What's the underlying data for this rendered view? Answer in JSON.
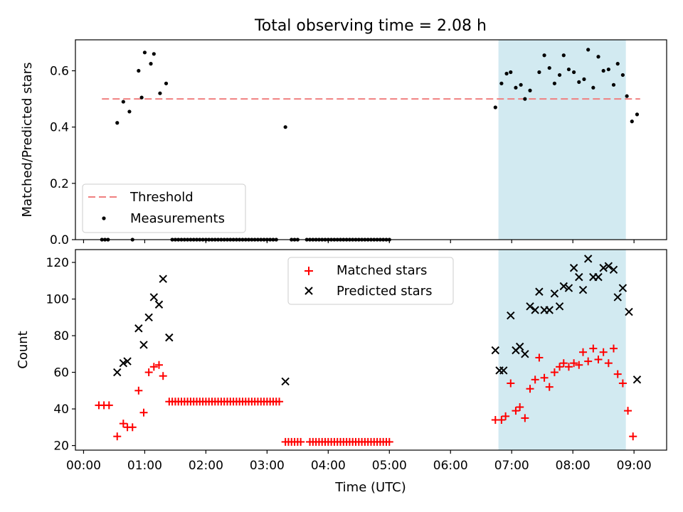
{
  "title": "Total observing time = 2.08 h",
  "xlabel": "Time (UTC)",
  "x_tick_labels": [
    "00:00",
    "01:00",
    "02:00",
    "03:00",
    "04:00",
    "05:00",
    "06:00",
    "07:00",
    "08:00",
    "09:00"
  ],
  "colors": {
    "threshold": "#f08080",
    "measurements": "#000000",
    "matched": "#ff0000",
    "predicted": "#000000",
    "span": "#add8e6"
  },
  "chart_data": [
    {
      "type": "scatter",
      "ylabel": "Matched/Predicted stars",
      "ylim": [
        0,
        0.71
      ],
      "y_ticks": [
        "0.0",
        "0.2",
        "0.4",
        "0.6"
      ],
      "xlim": [
        "23:52",
        "09:32"
      ],
      "legend_placement": "lower-left",
      "highlight_span": [
        "06:47",
        "08:52"
      ],
      "threshold": {
        "name": "Threshold",
        "value": 0.5,
        "x_range": [
          "00:18",
          "09:06"
        ]
      },
      "series": [
        {
          "name": "Measurements",
          "points": [
            [
              "00:18",
              0
            ],
            [
              "00:21",
              0
            ],
            [
              "00:24",
              0
            ],
            [
              "00:33",
              0.415
            ],
            [
              "00:39",
              0.49
            ],
            [
              "00:45",
              0.455
            ],
            [
              "00:48",
              0
            ],
            [
              "00:54",
              0.6
            ],
            [
              "00:57",
              0.505
            ],
            [
              "01:00",
              0.665
            ],
            [
              "01:06",
              0.625
            ],
            [
              "01:09",
              0.66
            ],
            [
              "01:15",
              0.52
            ],
            [
              "01:21",
              0.555
            ],
            [
              "01:27",
              0
            ],
            [
              "01:30",
              0
            ],
            [
              "01:33",
              0
            ],
            [
              "01:36",
              0
            ],
            [
              "01:39",
              0
            ],
            [
              "01:42",
              0
            ],
            [
              "01:45",
              0
            ],
            [
              "01:48",
              0
            ],
            [
              "01:51",
              0
            ],
            [
              "01:54",
              0
            ],
            [
              "01:57",
              0
            ],
            [
              "02:00",
              0
            ],
            [
              "02:03",
              0
            ],
            [
              "02:06",
              0
            ],
            [
              "02:09",
              0
            ],
            [
              "02:12",
              0
            ],
            [
              "02:15",
              0
            ],
            [
              "02:18",
              0
            ],
            [
              "02:21",
              0
            ],
            [
              "02:24",
              0
            ],
            [
              "02:27",
              0
            ],
            [
              "02:30",
              0
            ],
            [
              "02:33",
              0
            ],
            [
              "02:36",
              0
            ],
            [
              "02:39",
              0
            ],
            [
              "02:42",
              0
            ],
            [
              "02:45",
              0
            ],
            [
              "02:48",
              0
            ],
            [
              "02:51",
              0
            ],
            [
              "02:54",
              0
            ],
            [
              "02:57",
              0
            ],
            [
              "03:00",
              0
            ],
            [
              "03:03",
              0
            ],
            [
              "03:06",
              0
            ],
            [
              "03:09",
              0
            ],
            [
              "03:18",
              0.4
            ],
            [
              "03:24",
              0
            ],
            [
              "03:27",
              0
            ],
            [
              "03:30",
              0
            ],
            [
              "03:39",
              0
            ],
            [
              "03:42",
              0
            ],
            [
              "03:45",
              0
            ],
            [
              "03:48",
              0
            ],
            [
              "03:51",
              0
            ],
            [
              "03:54",
              0
            ],
            [
              "03:57",
              0
            ],
            [
              "04:00",
              0
            ],
            [
              "04:03",
              0
            ],
            [
              "04:06",
              0
            ],
            [
              "04:09",
              0
            ],
            [
              "04:12",
              0
            ],
            [
              "04:15",
              0
            ],
            [
              "04:18",
              0
            ],
            [
              "04:21",
              0
            ],
            [
              "04:24",
              0
            ],
            [
              "04:27",
              0
            ],
            [
              "04:30",
              0
            ],
            [
              "04:33",
              0
            ],
            [
              "04:36",
              0
            ],
            [
              "04:39",
              0
            ],
            [
              "04:42",
              0
            ],
            [
              "04:45",
              0
            ],
            [
              "04:48",
              0
            ],
            [
              "04:51",
              0
            ],
            [
              "04:54",
              0
            ],
            [
              "04:57",
              0
            ],
            [
              "05:00",
              0
            ],
            [
              "06:44",
              0.47
            ],
            [
              "06:50",
              0.555
            ],
            [
              "06:55",
              0.59
            ],
            [
              "06:59",
              0.595
            ],
            [
              "07:04",
              0.54
            ],
            [
              "07:09",
              0.55
            ],
            [
              "07:13",
              0.5
            ],
            [
              "07:18",
              0.53
            ],
            [
              "07:27",
              0.595
            ],
            [
              "07:32",
              0.655
            ],
            [
              "07:37",
              0.61
            ],
            [
              "07:42",
              0.555
            ],
            [
              "07:47",
              0.585
            ],
            [
              "07:51",
              0.655
            ],
            [
              "07:56",
              0.605
            ],
            [
              "08:01",
              0.595
            ],
            [
              "08:06",
              0.56
            ],
            [
              "08:11",
              0.57
            ],
            [
              "08:15",
              0.675
            ],
            [
              "08:20",
              0.54
            ],
            [
              "08:25",
              0.65
            ],
            [
              "08:30",
              0.6
            ],
            [
              "08:35",
              0.605
            ],
            [
              "08:40",
              0.55
            ],
            [
              "08:44",
              0.625
            ],
            [
              "08:49",
              0.585
            ],
            [
              "08:53",
              0.51
            ],
            [
              "08:58",
              0.42
            ],
            [
              "09:03",
              0.445
            ]
          ]
        }
      ]
    },
    {
      "type": "scatter",
      "ylabel": "Count",
      "ylim": [
        17.5,
        127
      ],
      "y_ticks": [
        "20",
        "40",
        "60",
        "80",
        "100",
        "120"
      ],
      "xlim": [
        "23:52",
        "09:32"
      ],
      "legend_placement": "upper-center",
      "highlight_span": [
        "06:47",
        "08:52"
      ],
      "series": [
        {
          "name": "Matched stars",
          "marker": "plus",
          "points": [
            [
              "00:15",
              42
            ],
            [
              "00:20",
              42
            ],
            [
              "00:25",
              42
            ],
            [
              "00:33",
              25
            ],
            [
              "00:39",
              32
            ],
            [
              "00:43",
              30
            ],
            [
              "00:48",
              30
            ],
            [
              "00:54",
              50
            ],
            [
              "00:59",
              38
            ],
            [
              "01:04",
              60
            ],
            [
              "01:09",
              63
            ],
            [
              "01:14",
              64
            ],
            [
              "01:18",
              58
            ],
            [
              "01:24",
              44
            ],
            [
              "01:27",
              44
            ],
            [
              "01:30",
              44
            ],
            [
              "01:33",
              44
            ],
            [
              "01:36",
              44
            ],
            [
              "01:39",
              44
            ],
            [
              "01:42",
              44
            ],
            [
              "01:45",
              44
            ],
            [
              "01:48",
              44
            ],
            [
              "01:51",
              44
            ],
            [
              "01:54",
              44
            ],
            [
              "01:57",
              44
            ],
            [
              "02:00",
              44
            ],
            [
              "02:03",
              44
            ],
            [
              "02:06",
              44
            ],
            [
              "02:09",
              44
            ],
            [
              "02:12",
              44
            ],
            [
              "02:15",
              44
            ],
            [
              "02:18",
              44
            ],
            [
              "02:21",
              44
            ],
            [
              "02:24",
              44
            ],
            [
              "02:27",
              44
            ],
            [
              "02:30",
              44
            ],
            [
              "02:33",
              44
            ],
            [
              "02:36",
              44
            ],
            [
              "02:39",
              44
            ],
            [
              "02:42",
              44
            ],
            [
              "02:45",
              44
            ],
            [
              "02:48",
              44
            ],
            [
              "02:51",
              44
            ],
            [
              "02:54",
              44
            ],
            [
              "02:57",
              44
            ],
            [
              "03:00",
              44
            ],
            [
              "03:03",
              44
            ],
            [
              "03:06",
              44
            ],
            [
              "03:09",
              44
            ],
            [
              "03:12",
              44
            ],
            [
              "03:18",
              22
            ],
            [
              "03:21",
              22
            ],
            [
              "03:24",
              22
            ],
            [
              "03:27",
              22
            ],
            [
              "03:30",
              22
            ],
            [
              "03:33",
              22
            ],
            [
              "03:42",
              22
            ],
            [
              "03:45",
              22
            ],
            [
              "03:48",
              22
            ],
            [
              "03:51",
              22
            ],
            [
              "03:54",
              22
            ],
            [
              "03:57",
              22
            ],
            [
              "04:00",
              22
            ],
            [
              "04:03",
              22
            ],
            [
              "04:06",
              22
            ],
            [
              "04:09",
              22
            ],
            [
              "04:12",
              22
            ],
            [
              "04:15",
              22
            ],
            [
              "04:18",
              22
            ],
            [
              "04:21",
              22
            ],
            [
              "04:24",
              22
            ],
            [
              "04:27",
              22
            ],
            [
              "04:30",
              22
            ],
            [
              "04:33",
              22
            ],
            [
              "04:36",
              22
            ],
            [
              "04:39",
              22
            ],
            [
              "04:42",
              22
            ],
            [
              "04:45",
              22
            ],
            [
              "04:48",
              22
            ],
            [
              "04:51",
              22
            ],
            [
              "04:54",
              22
            ],
            [
              "04:57",
              22
            ],
            [
              "05:00",
              22
            ],
            [
              "06:44",
              34
            ],
            [
              "06:50",
              34
            ],
            [
              "06:54",
              36
            ],
            [
              "06:59",
              54
            ],
            [
              "07:04",
              39
            ],
            [
              "07:08",
              41
            ],
            [
              "07:13",
              35
            ],
            [
              "07:18",
              51
            ],
            [
              "07:23",
              56
            ],
            [
              "07:27",
              68
            ],
            [
              "07:32",
              57
            ],
            [
              "07:37",
              52
            ],
            [
              "07:42",
              60
            ],
            [
              "07:47",
              63
            ],
            [
              "07:51",
              65
            ],
            [
              "07:56",
              63
            ],
            [
              "08:01",
              65
            ],
            [
              "08:06",
              64
            ],
            [
              "08:10",
              71
            ],
            [
              "08:15",
              66
            ],
            [
              "08:20",
              73
            ],
            [
              "08:25",
              67
            ],
            [
              "08:30",
              71
            ],
            [
              "08:35",
              65
            ],
            [
              "08:40",
              73
            ],
            [
              "08:44",
              59
            ],
            [
              "08:49",
              54
            ],
            [
              "08:54",
              39
            ],
            [
              "08:59",
              25
            ]
          ]
        },
        {
          "name": "Predicted stars",
          "marker": "x",
          "points": [
            [
              "00:33",
              60
            ],
            [
              "00:39",
              65
            ],
            [
              "00:43",
              66
            ],
            [
              "00:54",
              84
            ],
            [
              "00:59",
              75
            ],
            [
              "01:04",
              90
            ],
            [
              "01:09",
              101
            ],
            [
              "01:14",
              97
            ],
            [
              "01:18",
              111
            ],
            [
              "01:24",
              79
            ],
            [
              "03:18",
              55
            ],
            [
              "06:44",
              72
            ],
            [
              "06:48",
              61
            ],
            [
              "06:52",
              61
            ],
            [
              "06:59",
              91
            ],
            [
              "07:04",
              72
            ],
            [
              "07:08",
              74
            ],
            [
              "07:13",
              70
            ],
            [
              "07:18",
              96
            ],
            [
              "07:23",
              94
            ],
            [
              "07:27",
              104
            ],
            [
              "07:32",
              94
            ],
            [
              "07:37",
              94
            ],
            [
              "07:42",
              103
            ],
            [
              "07:47",
              96
            ],
            [
              "07:51",
              107
            ],
            [
              "07:56",
              106
            ],
            [
              "08:01",
              117
            ],
            [
              "08:06",
              112
            ],
            [
              "08:10",
              105
            ],
            [
              "08:15",
              122
            ],
            [
              "08:20",
              112
            ],
            [
              "08:25",
              112
            ],
            [
              "08:30",
              117
            ],
            [
              "08:35",
              118
            ],
            [
              "08:40",
              116
            ],
            [
              "08:44",
              101
            ],
            [
              "08:49",
              106
            ],
            [
              "08:55",
              93
            ],
            [
              "09:03",
              56
            ]
          ]
        }
      ]
    }
  ]
}
